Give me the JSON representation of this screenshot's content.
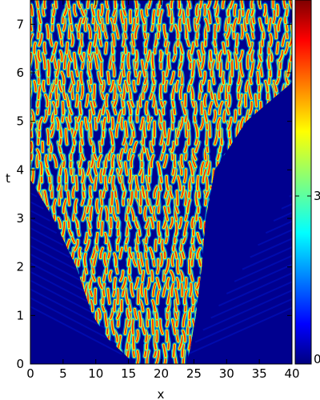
{
  "chart_data": {
    "type": "heatmap",
    "title": "",
    "xlabel": "x",
    "ylabel": "t",
    "xlim": [
      0,
      40
    ],
    "ylim": [
      0,
      7.5
    ],
    "x_ticks": [
      0,
      5,
      10,
      15,
      20,
      25,
      30,
      35,
      40
    ],
    "y_ticks": [
      0,
      1,
      2,
      3,
      4,
      5,
      6,
      7
    ],
    "colormap": "jet",
    "colorbar": {
      "range": [
        0,
        6.5
      ],
      "ticks": [
        0,
        3
      ]
    },
    "pattern": {
      "description_region": "turbulent stripes spreading from x≈17,t=0; left front reaches x=0 near t≈3.8, right front reaches x=40 near t≈5.8",
      "origin_x": 17,
      "left_front": [
        [
          0,
          16
        ],
        [
          0.5,
          12
        ],
        [
          1,
          9.5
        ],
        [
          2,
          7
        ],
        [
          3,
          3.5
        ],
        [
          3.8,
          0
        ]
      ],
      "right_front": [
        [
          0,
          24
        ],
        [
          1,
          25.3
        ],
        [
          2,
          26.2
        ],
        [
          3,
          26.8
        ],
        [
          4,
          28.2
        ],
        [
          5,
          33
        ],
        [
          5.8,
          40
        ]
      ],
      "background_color": "#00008f",
      "stripe_color_core": "#ff2000",
      "stripe_color_edge": "#ffff00"
    }
  }
}
